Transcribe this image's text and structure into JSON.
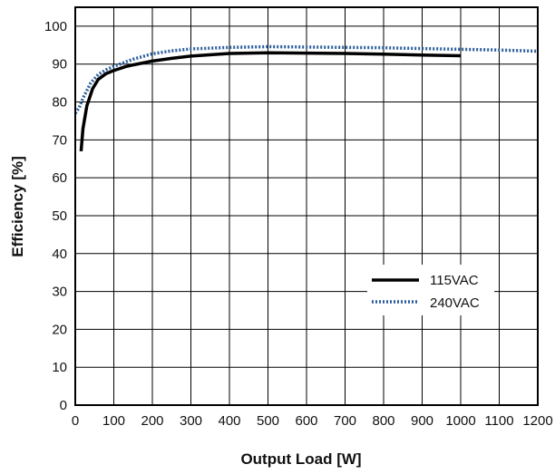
{
  "chart_data": {
    "type": "line",
    "xlabel": "Output Load [W]",
    "ylabel": "Efficiency [%]",
    "xlim": [
      0,
      1200
    ],
    "ylim": [
      0,
      105
    ],
    "x_ticks": [
      "0",
      "100",
      "200",
      "300",
      "400",
      "500",
      "600",
      "700",
      "800",
      "900",
      "1000",
      "1100",
      "1200"
    ],
    "y_ticks": [
      "0",
      "10",
      "20",
      "30",
      "40",
      "50",
      "60",
      "70",
      "80",
      "90",
      "100"
    ],
    "grid": true,
    "legend_position": "bottom-right",
    "series": [
      {
        "name": "115VAC",
        "color": "#000000",
        "style": "solid",
        "points": [
          [
            15,
            67
          ],
          [
            20,
            73
          ],
          [
            30,
            79
          ],
          [
            45,
            83.5
          ],
          [
            60,
            86
          ],
          [
            80,
            87.5
          ],
          [
            100,
            88.3
          ],
          [
            130,
            89.3
          ],
          [
            150,
            89.8
          ],
          [
            200,
            90.8
          ],
          [
            250,
            91.5
          ],
          [
            300,
            92.1
          ],
          [
            400,
            92.8
          ],
          [
            500,
            93.0
          ],
          [
            600,
            92.9
          ],
          [
            700,
            92.8
          ],
          [
            800,
            92.6
          ],
          [
            900,
            92.4
          ],
          [
            1000,
            92.2
          ]
        ]
      },
      {
        "name": "240VAC",
        "color": "#2a5d9c",
        "style": "dotted",
        "points": [
          [
            0,
            77
          ],
          [
            10,
            78.5
          ],
          [
            20,
            81
          ],
          [
            40,
            85
          ],
          [
            60,
            87.3
          ],
          [
            80,
            88.5
          ],
          [
            100,
            89.4
          ],
          [
            150,
            91.3
          ],
          [
            200,
            92.7
          ],
          [
            250,
            93.5
          ],
          [
            300,
            94.0
          ],
          [
            400,
            94.4
          ],
          [
            500,
            94.6
          ],
          [
            600,
            94.5
          ],
          [
            700,
            94.4
          ],
          [
            800,
            94.3
          ],
          [
            900,
            94.1
          ],
          [
            1000,
            93.9
          ],
          [
            1100,
            93.7
          ],
          [
            1200,
            93.4
          ]
        ]
      }
    ]
  }
}
